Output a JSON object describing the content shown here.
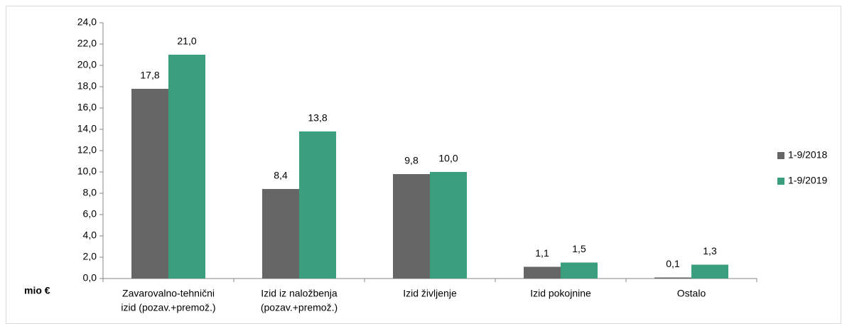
{
  "chart_data": {
    "type": "bar",
    "y_label": "mio €",
    "categories": [
      [
        "Zavarovalno-tehnični",
        "izid (pozav.+premož.)"
      ],
      [
        "Izid iz naložbenja",
        "(pozav.+premož.)"
      ],
      [
        "Izid življenje"
      ],
      [
        "Izid pokojnine"
      ],
      [
        "Ostalo"
      ]
    ],
    "series": [
      {
        "name": "1-9/2018",
        "color": "#666666",
        "values": [
          17.8,
          8.4,
          9.8,
          1.1,
          0.1
        ],
        "value_labels": [
          "17,8",
          "8,4",
          "9,8",
          "1,1",
          "0,1"
        ]
      },
      {
        "name": "1-9/2019",
        "color": "#3a9e7f",
        "values": [
          21.0,
          13.8,
          10.0,
          1.5,
          1.3
        ],
        "value_labels": [
          "21,0",
          "13,8",
          "10,0",
          "1,5",
          "1,3"
        ]
      }
    ],
    "ylim": [
      0,
      24
    ],
    "yticks": [
      {
        "value": 0,
        "label": "0,0"
      },
      {
        "value": 2,
        "label": "2,0"
      },
      {
        "value": 4,
        "label": "4,0"
      },
      {
        "value": 6,
        "label": "6,0"
      },
      {
        "value": 8,
        "label": "8,0"
      },
      {
        "value": 10,
        "label": "10,0"
      },
      {
        "value": 12,
        "label": "12,0"
      },
      {
        "value": 14,
        "label": "14,0"
      },
      {
        "value": 16,
        "label": "16,0"
      },
      {
        "value": 18,
        "label": "18,0"
      },
      {
        "value": 20,
        "label": "20,0"
      },
      {
        "value": 22,
        "label": "22,0"
      },
      {
        "value": 24,
        "label": "24,0"
      }
    ],
    "legend": "right"
  }
}
